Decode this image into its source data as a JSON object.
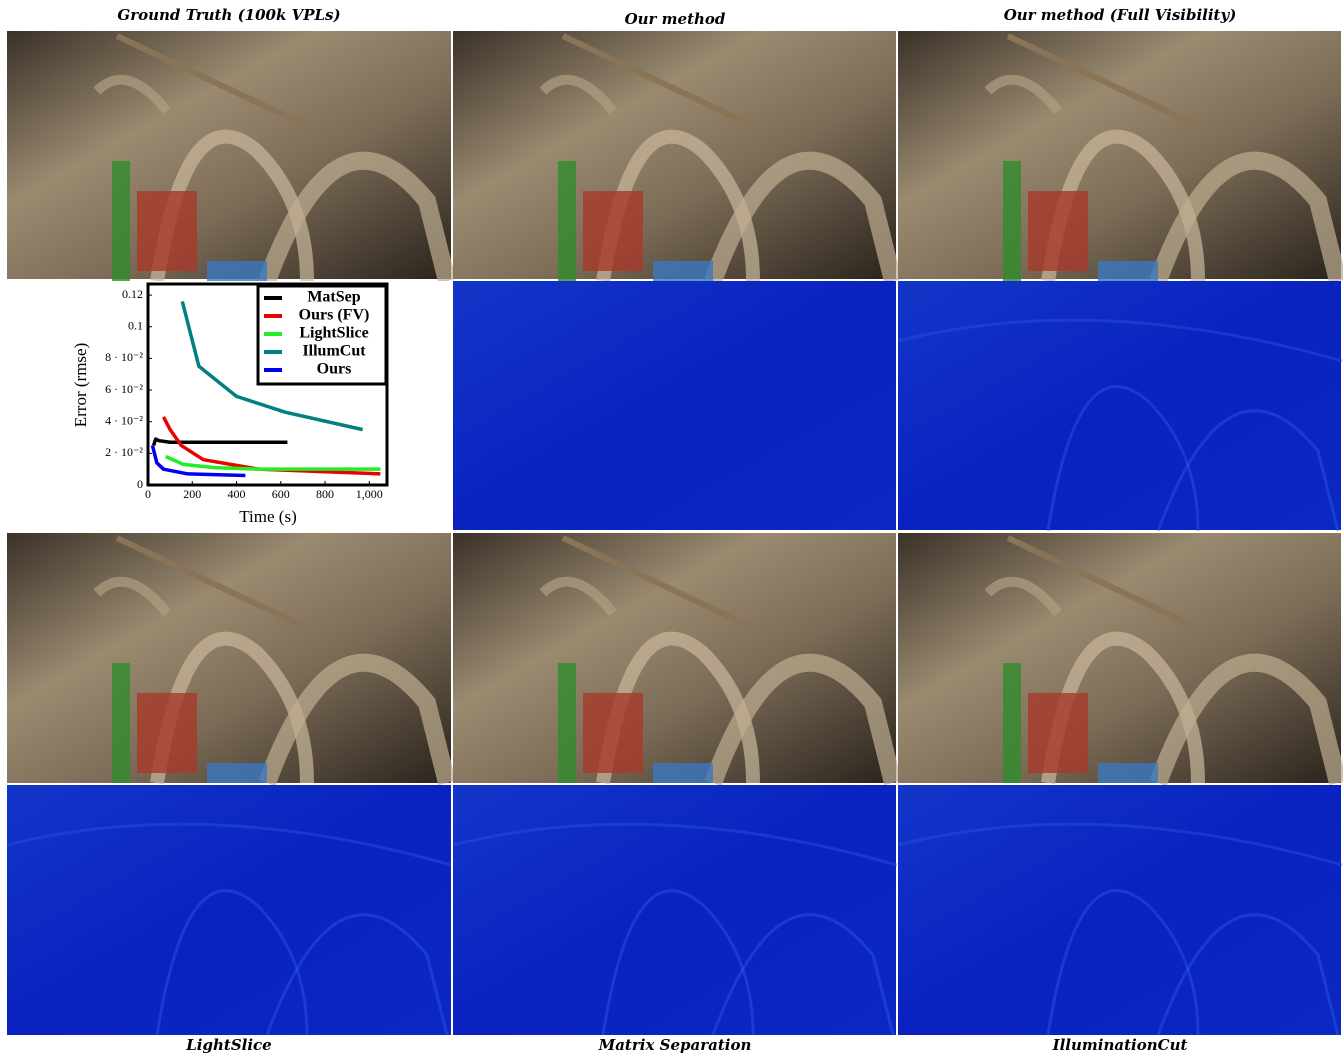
{
  "top_captions": [
    "Ground Truth (100k VPLs)",
    "Our method",
    "Our method (Full Visibility)"
  ],
  "bottom_captions": [
    "LightSlice",
    "Matrix Separation",
    "IlluminationCut"
  ],
  "chart_data": {
    "type": "line",
    "xlabel": "Time (s)",
    "ylabel": "Error (rmse)",
    "xlim": [
      0,
      1080
    ],
    "ylim": [
      0,
      0.127
    ],
    "xticks": [
      0,
      200,
      400,
      600,
      800,
      {
        "value": 1000,
        "label": "1,000"
      }
    ],
    "yticks": [
      0,
      {
        "value": 0.02,
        "label": "2 · 10⁻²"
      },
      {
        "value": 0.04,
        "label": "4 · 10⁻²"
      },
      {
        "value": 0.06,
        "label": "6 · 10⁻²"
      },
      {
        "value": 0.08,
        "label": "8 · 10⁻²"
      },
      0.1,
      0.12
    ],
    "legend": "upper right",
    "series": [
      {
        "name": "MatSep",
        "color": "#000000",
        "x": [
          25,
          35,
          50,
          100,
          200,
          400,
          630
        ],
        "values": [
          0.025,
          0.029,
          0.028,
          0.027,
          0.027,
          0.027,
          0.027
        ]
      },
      {
        "name": "Ours (FV)",
        "color": "#ee0000",
        "x": [
          70,
          100,
          150,
          250,
          500,
          1050
        ],
        "values": [
          0.043,
          0.035,
          0.025,
          0.016,
          0.01,
          0.007
        ]
      },
      {
        "name": "LightSlice",
        "color": "#22ee22",
        "x": [
          80,
          160,
          300,
          500,
          1050
        ],
        "values": [
          0.018,
          0.013,
          0.011,
          0.01,
          0.01
        ]
      },
      {
        "name": "IllumCut",
        "color": "#008080",
        "x": [
          155,
          230,
          400,
          620,
          970
        ],
        "values": [
          0.116,
          0.075,
          0.056,
          0.046,
          0.035
        ]
      },
      {
        "name": "Ours",
        "color": "#0000ee",
        "x": [
          20,
          40,
          70,
          180,
          440
        ],
        "values": [
          0.025,
          0.014,
          0.01,
          0.007,
          0.006
        ]
      }
    ]
  }
}
